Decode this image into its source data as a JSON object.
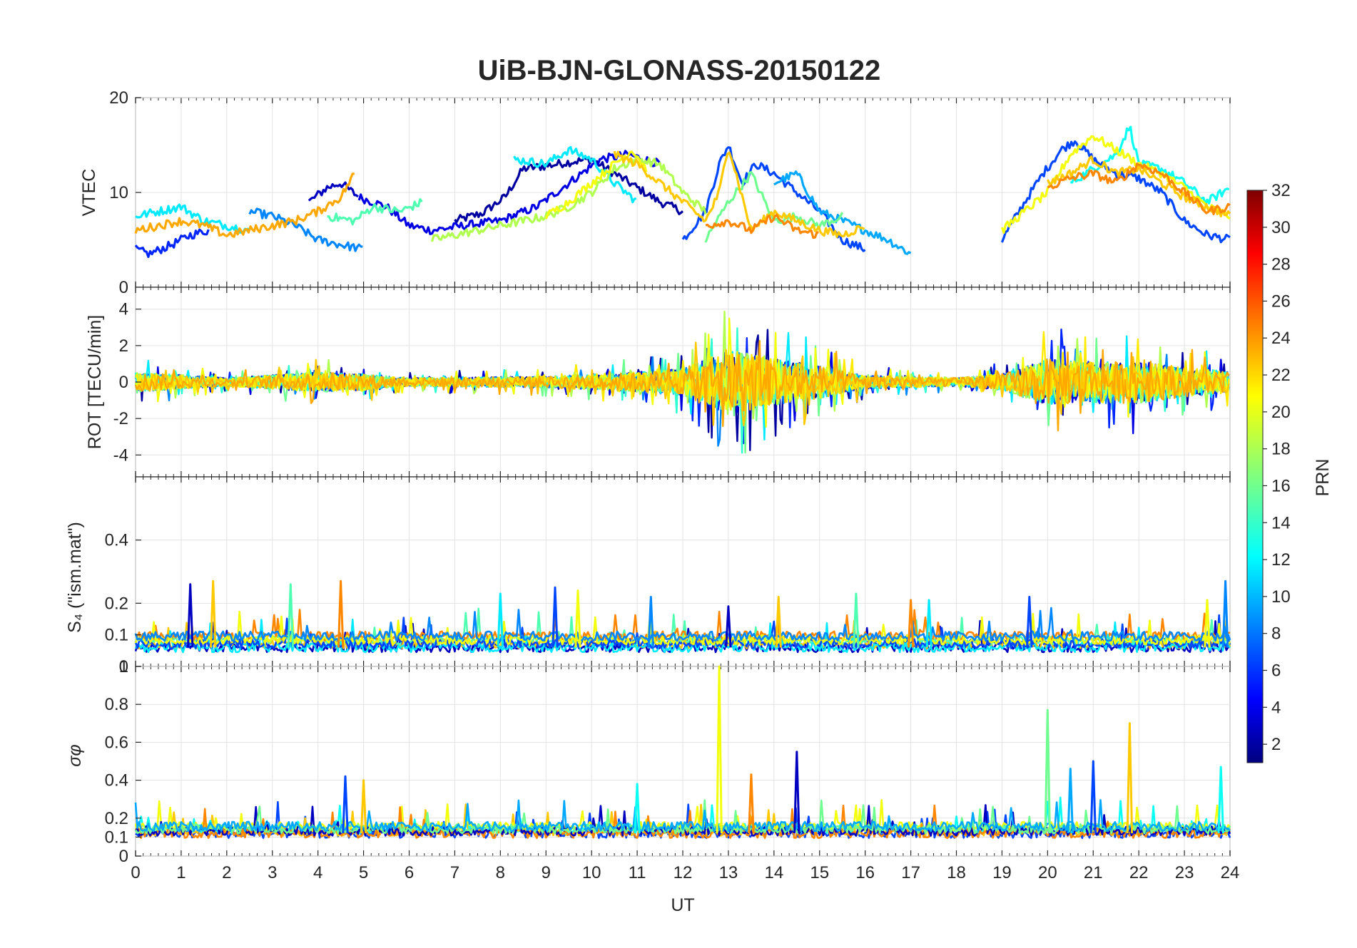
{
  "figure": {
    "title": "UiB-BJN-GLONASS-20150122",
    "xlabel": "UT",
    "x_ticks": [
      "0",
      "1",
      "2",
      "3",
      "4",
      "5",
      "6",
      "7",
      "8",
      "9",
      "10",
      "11",
      "12",
      "13",
      "14",
      "15",
      "16",
      "17",
      "18",
      "19",
      "20",
      "21",
      "22",
      "23",
      "24"
    ]
  },
  "colorbar": {
    "label": "PRN",
    "ticks": [
      "2",
      "4",
      "6",
      "8",
      "10",
      "12",
      "14",
      "16",
      "18",
      "20",
      "22",
      "24",
      "26",
      "28",
      "30",
      "32"
    ],
    "range": [
      1,
      32
    ],
    "colormap": "jet",
    "colormap_stops": [
      "#00007f",
      "#0000ff",
      "#007fff",
      "#00ffff",
      "#7fff7f",
      "#ffff00",
      "#ff7f00",
      "#ff0000",
      "#7f0000"
    ]
  },
  "chart_data": [
    {
      "type": "line",
      "panel": "VTEC",
      "ylabel": "VTEC",
      "ylim": [
        0,
        20
      ],
      "xlim": [
        0,
        24
      ],
      "y_ticks": [
        "0",
        "10",
        "20"
      ],
      "grid": true,
      "series": [
        {
          "color_prn": 2,
          "x": [
            7.0,
            7.6,
            8.1,
            8.5,
            9.0,
            9.5,
            10.0,
            10.5,
            11.0,
            11.5,
            12.0
          ],
          "y": [
            7.0,
            7.8,
            9.5,
            12.5,
            12.8,
            13.2,
            13.5,
            12.0,
            10.5,
            9.0,
            8.0
          ]
        },
        {
          "color_prn": 3,
          "x": [
            3.8,
            4.2,
            4.5,
            4.9
          ],
          "y": [
            9.0,
            10.5,
            11.0,
            9.5
          ]
        },
        {
          "color_prn": 4,
          "x": [
            4.9,
            5.5,
            6.0,
            6.5,
            7.2,
            8.0,
            8.8,
            9.5,
            10.2,
            10.8,
            11.5
          ],
          "y": [
            9.5,
            8.5,
            6.5,
            6.0,
            6.5,
            7.0,
            8.5,
            11.0,
            13.5,
            14.0,
            13.0
          ]
        },
        {
          "color_prn": 6,
          "x": [
            0.0,
            0.3,
            0.8,
            1.2,
            1.6
          ],
          "y": [
            4.0,
            3.5,
            4.5,
            5.5,
            6.0
          ]
        },
        {
          "color_prn": 7,
          "x": [
            12.0,
            12.5,
            12.8,
            13.0,
            13.3,
            13.6,
            14.0,
            14.5,
            15.0,
            15.5,
            16.0
          ],
          "y": [
            5.0,
            8.0,
            13.0,
            15.0,
            11.0,
            13.0,
            12.0,
            10.0,
            8.0,
            5.0,
            4.0
          ]
        },
        {
          "color_prn": 7,
          "x": [
            19.0,
            19.5,
            19.9,
            20.3,
            20.6,
            21.0,
            21.5,
            22.0,
            22.5,
            23.0,
            23.5,
            24.0
          ],
          "y": [
            5.0,
            9.0,
            12.0,
            14.5,
            15.5,
            13.5,
            12.0,
            11.5,
            10.0,
            7.0,
            5.5,
            5.0
          ]
        },
        {
          "color_prn": 9,
          "x": [
            2.5,
            3.0,
            3.5,
            4.0,
            4.5,
            5.0
          ],
          "y": [
            8.0,
            7.5,
            6.5,
            5.0,
            4.5,
            4.0
          ]
        },
        {
          "color_prn": 10,
          "x": [
            14.0,
            14.5,
            15.0,
            15.5,
            16.0,
            16.5,
            17.0
          ],
          "y": [
            11.0,
            12.0,
            8.0,
            7.0,
            6.0,
            5.0,
            3.5
          ]
        },
        {
          "color_prn": 12,
          "x": [
            0.0,
            0.5,
            1.0,
            1.5,
            2.0,
            2.5
          ],
          "y": [
            7.5,
            8.0,
            8.5,
            7.0,
            6.5,
            6.0
          ]
        },
        {
          "color_prn": 12,
          "x": [
            8.3,
            9.0,
            9.5,
            10.0,
            10.5,
            11.0
          ],
          "y": [
            13.5,
            13.0,
            14.5,
            13.5,
            11.0,
            9.0
          ]
        },
        {
          "color_prn": 13,
          "x": [
            20.5,
            21.0,
            21.5,
            21.8,
            22.0,
            22.5,
            23.0,
            23.5,
            24.0
          ],
          "y": [
            11.0,
            12.5,
            14.0,
            17.0,
            13.0,
            12.5,
            11.0,
            9.0,
            10.5
          ]
        },
        {
          "color_prn": 15,
          "x": [
            4.2,
            4.8,
            5.2,
            5.8,
            6.3
          ],
          "y": [
            7.5,
            7.0,
            8.5,
            8.0,
            9.0
          ]
        },
        {
          "color_prn": 16,
          "x": [
            12.5,
            13.0,
            13.5,
            14.0,
            14.5,
            15.0,
            15.5
          ],
          "y": [
            5.0,
            9.0,
            12.0,
            7.0,
            7.5,
            6.5,
            7.5
          ]
        },
        {
          "color_prn": 18,
          "x": [
            6.5,
            7.0,
            7.5,
            8.0,
            8.5,
            9.0,
            9.5,
            10.0,
            10.5,
            11.0,
            11.5,
            12.0,
            12.5
          ],
          "y": [
            5.0,
            5.5,
            6.0,
            6.5,
            7.0,
            7.5,
            8.5,
            10.0,
            12.5,
            13.5,
            13.0,
            10.0,
            8.0
          ]
        },
        {
          "color_prn": 20,
          "x": [
            9.0,
            9.5,
            10.0,
            10.5,
            10.9,
            11.2
          ],
          "y": [
            7.5,
            9.0,
            11.0,
            13.0,
            14.5,
            12.5
          ]
        },
        {
          "color_prn": 20,
          "x": [
            19.0,
            19.5,
            20.0,
            20.5,
            21.0,
            21.5,
            22.0,
            22.5,
            23.0,
            23.5,
            24.0
          ],
          "y": [
            6.0,
            8.0,
            10.0,
            14.0,
            16.0,
            14.5,
            13.0,
            12.0,
            10.5,
            8.5,
            7.5
          ]
        },
        {
          "color_prn": 22,
          "x": [
            10.5,
            11.0,
            11.5,
            12.0,
            12.5,
            12.8,
            13.0,
            13.5,
            14.0,
            14.5,
            15.0,
            15.5,
            16.0
          ],
          "y": [
            14.0,
            13.0,
            11.0,
            9.0,
            7.0,
            10.0,
            15.0,
            6.0,
            8.0,
            7.0,
            6.0,
            5.5,
            6.5
          ]
        },
        {
          "color_prn": 22,
          "x": [
            20.0,
            20.5,
            21.0,
            21.5,
            22.0,
            22.5,
            23.0,
            23.5,
            24.0
          ],
          "y": [
            11.0,
            12.0,
            13.5,
            12.0,
            12.5,
            11.0,
            9.5,
            8.5,
            7.5
          ]
        },
        {
          "color_prn": 23,
          "x": [
            0.0,
            0.5,
            1.0,
            1.5,
            2.0,
            2.5,
            3.0,
            3.5,
            4.0,
            4.5,
            4.8
          ],
          "y": [
            6.0,
            6.5,
            7.0,
            6.5,
            5.5,
            6.0,
            6.5,
            7.0,
            8.0,
            9.5,
            12.0
          ]
        },
        {
          "color_prn": 24,
          "x": [
            12.5,
            13.0,
            13.5,
            14.0,
            14.5,
            15.0
          ],
          "y": [
            6.5,
            7.0,
            6.0,
            7.5,
            6.0,
            5.5
          ]
        },
        {
          "color_prn": 24,
          "x": [
            20.0,
            20.5,
            21.0,
            21.5,
            22.0,
            22.5,
            23.0,
            23.5,
            24.0
          ],
          "y": [
            10.5,
            11.5,
            12.0,
            11.0,
            13.0,
            12.0,
            10.0,
            8.0,
            8.5
          ]
        }
      ]
    },
    {
      "type": "line",
      "panel": "ROT",
      "ylabel": "ROT [TECU/min]",
      "ylim": [
        -5.2,
        5.2
      ],
      "xlim": [
        0,
        24
      ],
      "y_ticks": [
        "-4",
        "-2",
        "0",
        "2",
        "4"
      ],
      "grid": true,
      "noise_profile": {
        "x": [
          0,
          2,
          4,
          5,
          6,
          9,
          11,
          12,
          13,
          14,
          15,
          16,
          18,
          19,
          20,
          21,
          22,
          23,
          24
        ],
        "amplitude": [
          1.2,
          0.5,
          1.2,
          1.0,
          0.5,
          0.7,
          1.2,
          1.6,
          4.0,
          2.8,
          2.0,
          0.8,
          0.5,
          1.0,
          2.8,
          2.5,
          2.6,
          1.8,
          1.3
        ]
      }
    },
    {
      "type": "line",
      "panel": "S4",
      "ylabel": "S₄ (\"ism.mat\")",
      "ylim": [
        0,
        0.6
      ],
      "xlim": [
        0,
        24
      ],
      "y_ticks": [
        "0",
        "0.1",
        "0.2",
        "0.4"
      ],
      "grid": true,
      "baseline": 0.06,
      "spikes": [
        {
          "x": 1.2,
          "y": 0.26
        },
        {
          "x": 1.7,
          "y": 0.27
        },
        {
          "x": 3.4,
          "y": 0.26
        },
        {
          "x": 4.5,
          "y": 0.27
        },
        {
          "x": 8.0,
          "y": 0.23
        },
        {
          "x": 9.2,
          "y": 0.25
        },
        {
          "x": 9.7,
          "y": 0.24
        },
        {
          "x": 11.3,
          "y": 0.22
        },
        {
          "x": 13.0,
          "y": 0.19
        },
        {
          "x": 14.1,
          "y": 0.22
        },
        {
          "x": 15.8,
          "y": 0.23
        },
        {
          "x": 17.0,
          "y": 0.21
        },
        {
          "x": 17.4,
          "y": 0.21
        },
        {
          "x": 19.6,
          "y": 0.22
        },
        {
          "x": 23.5,
          "y": 0.21
        },
        {
          "x": 23.9,
          "y": 0.27
        }
      ]
    },
    {
      "type": "line",
      "panel": "sigma_phi",
      "ylabel": "σφ",
      "ylim": [
        0,
        1.0
      ],
      "xlim": [
        0,
        24
      ],
      "y_ticks": [
        "0",
        "0.1",
        "0.2",
        "0.4",
        "0.6",
        "0.8",
        "1"
      ],
      "grid": true,
      "baseline": 0.12,
      "spikes": [
        {
          "x": 4.6,
          "y": 0.42
        },
        {
          "x": 5.0,
          "y": 0.4
        },
        {
          "x": 11.0,
          "y": 0.38
        },
        {
          "x": 12.8,
          "y": 1.0
        },
        {
          "x": 13.5,
          "y": 0.43
        },
        {
          "x": 14.5,
          "y": 0.55
        },
        {
          "x": 20.0,
          "y": 0.77
        },
        {
          "x": 20.5,
          "y": 0.46
        },
        {
          "x": 21.0,
          "y": 0.5
        },
        {
          "x": 21.8,
          "y": 0.7
        },
        {
          "x": 23.8,
          "y": 0.47
        }
      ]
    }
  ]
}
